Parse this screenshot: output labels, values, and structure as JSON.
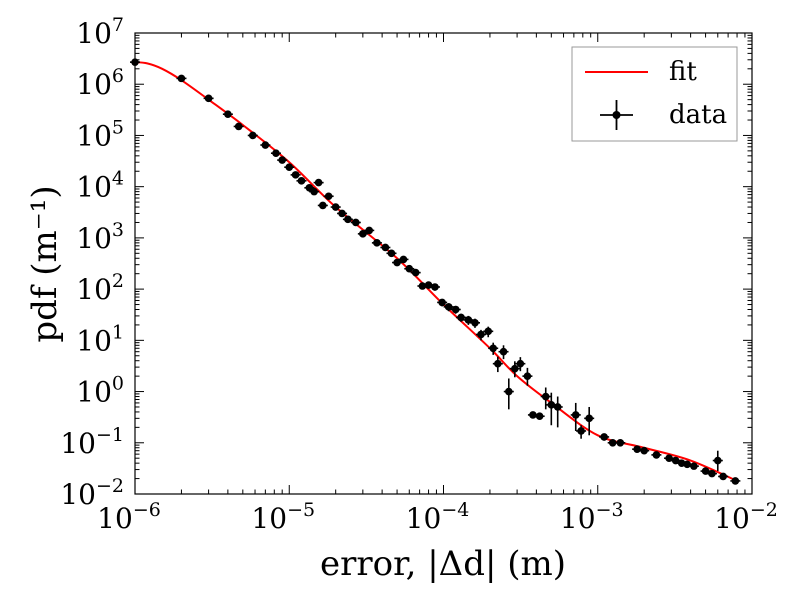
{
  "chart_data": {
    "type": "scatter",
    "title": "",
    "xlabel": "error, |Δd| (m)",
    "ylabel": "pdf (m⁻¹)",
    "xscale": "log",
    "yscale": "log",
    "xlim": [
      1e-06,
      0.01
    ],
    "ylim": [
      0.01,
      10000000
    ],
    "x_ticks": [
      {
        "value": 1e-06,
        "base": "10",
        "exp": "−6"
      },
      {
        "value": 1e-05,
        "base": "10",
        "exp": "−5"
      },
      {
        "value": 0.0001,
        "base": "10",
        "exp": "−4"
      },
      {
        "value": 0.001,
        "base": "10",
        "exp": "−3"
      },
      {
        "value": 0.01,
        "base": "10",
        "exp": "−2"
      }
    ],
    "y_ticks": [
      {
        "value": 0.01,
        "base": "10",
        "exp": "−2"
      },
      {
        "value": 0.1,
        "base": "10",
        "exp": "−1"
      },
      {
        "value": 1,
        "base": "10",
        "exp": "0"
      },
      {
        "value": 10,
        "base": "10",
        "exp": "1"
      },
      {
        "value": 100,
        "base": "10",
        "exp": "2"
      },
      {
        "value": 1000,
        "base": "10",
        "exp": "3"
      },
      {
        "value": 10000,
        "base": "10",
        "exp": "4"
      },
      {
        "value": 100000,
        "base": "10",
        "exp": "5"
      },
      {
        "value": 1000000,
        "base": "10",
        "exp": "6"
      },
      {
        "value": 10000000,
        "base": "10",
        "exp": "7"
      }
    ],
    "legend": {
      "position": "top-right",
      "entries": [
        {
          "label": "fit",
          "kind": "line",
          "color": "#ff0000"
        },
        {
          "label": "data",
          "kind": "errorbar",
          "color": "#000000"
        }
      ]
    },
    "series": [
      {
        "name": "fit",
        "kind": "line",
        "color": "#ff0000",
        "points": [
          [
            1e-06,
            2700000
          ],
          [
            1.2e-06,
            2550000
          ],
          [
            1.5e-06,
            2000000
          ],
          [
            2e-06,
            1200000
          ],
          [
            3e-06,
            500000
          ],
          [
            5e-06,
            160000
          ],
          [
            1e-05,
            30000
          ],
          [
            2e-05,
            4000
          ],
          [
            5e-05,
            400
          ],
          [
            0.0001,
            50
          ],
          [
            0.0002,
            7
          ],
          [
            0.0003,
            2
          ],
          [
            0.0005,
            0.6
          ],
          [
            0.001,
            0.14
          ],
          [
            0.002,
            0.08
          ],
          [
            0.004,
            0.045
          ],
          [
            0.008,
            0.018
          ]
        ]
      },
      {
        "name": "data",
        "kind": "errorbar",
        "color": "#000000",
        "points": [
          {
            "x": 1e-06,
            "y": 2700000,
            "ylo": 2500000,
            "yhi": 2900000
          },
          {
            "x": 2e-06,
            "y": 1300000,
            "ylo": 1200000,
            "yhi": 1400000
          },
          {
            "x": 3e-06,
            "y": 530000,
            "ylo": 490000,
            "yhi": 570000
          },
          {
            "x": 4e-06,
            "y": 260000,
            "ylo": 240000,
            "yhi": 280000
          },
          {
            "x": 4.7e-06,
            "y": 150000,
            "ylo": 138000,
            "yhi": 162000
          },
          {
            "x": 5.8e-06,
            "y": 100000,
            "ylo": 92000,
            "yhi": 108000
          },
          {
            "x": 7e-06,
            "y": 65000,
            "ylo": 60000,
            "yhi": 70000
          },
          {
            "x": 8.2e-06,
            "y": 45000,
            "ylo": 41000,
            "yhi": 49000
          },
          {
            "x": 9e-06,
            "y": 33000,
            "ylo": 30000,
            "yhi": 36000
          },
          {
            "x": 1e-05,
            "y": 24000,
            "ylo": 22000,
            "yhi": 26000
          },
          {
            "x": 1.1e-05,
            "y": 17000,
            "ylo": 15500,
            "yhi": 18500
          },
          {
            "x": 1.2e-05,
            "y": 13000,
            "ylo": 11800,
            "yhi": 14200
          },
          {
            "x": 1.35e-05,
            "y": 9500,
            "ylo": 8600,
            "yhi": 10400
          },
          {
            "x": 1.45e-05,
            "y": 8000,
            "ylo": 7200,
            "yhi": 8800
          },
          {
            "x": 1.55e-05,
            "y": 12000,
            "ylo": 10900,
            "yhi": 13100
          },
          {
            "x": 1.65e-05,
            "y": 4300,
            "ylo": 3900,
            "yhi": 4700
          },
          {
            "x": 1.8e-05,
            "y": 6500,
            "ylo": 5900,
            "yhi": 7100
          },
          {
            "x": 2e-05,
            "y": 4000,
            "ylo": 3600,
            "yhi": 4400
          },
          {
            "x": 2.2e-05,
            "y": 3000,
            "ylo": 2700,
            "yhi": 3300
          },
          {
            "x": 2.4e-05,
            "y": 2300,
            "ylo": 2050,
            "yhi": 2550
          },
          {
            "x": 2.7e-05,
            "y": 2000,
            "ylo": 1780,
            "yhi": 2220
          },
          {
            "x": 3e-05,
            "y": 1200,
            "ylo": 1060,
            "yhi": 1340
          },
          {
            "x": 3.3e-05,
            "y": 1400,
            "ylo": 1240,
            "yhi": 1560
          },
          {
            "x": 3.7e-05,
            "y": 800,
            "ylo": 700,
            "yhi": 900
          },
          {
            "x": 4.2e-05,
            "y": 650,
            "ylo": 570,
            "yhi": 730
          },
          {
            "x": 4.6e-05,
            "y": 500,
            "ylo": 440,
            "yhi": 560
          },
          {
            "x": 5e-05,
            "y": 330,
            "ylo": 290,
            "yhi": 370
          },
          {
            "x": 5.5e-05,
            "y": 380,
            "ylo": 330,
            "yhi": 430
          },
          {
            "x": 6e-05,
            "y": 250,
            "ylo": 215,
            "yhi": 285
          },
          {
            "x": 6.6e-05,
            "y": 210,
            "ylo": 180,
            "yhi": 240
          },
          {
            "x": 7.3e-05,
            "y": 115,
            "ylo": 98,
            "yhi": 132
          },
          {
            "x": 8e-05,
            "y": 120,
            "ylo": 102,
            "yhi": 138
          },
          {
            "x": 8.8e-05,
            "y": 110,
            "ylo": 93,
            "yhi": 127
          },
          {
            "x": 9.8e-05,
            "y": 55,
            "ylo": 46,
            "yhi": 64
          },
          {
            "x": 0.000108,
            "y": 45,
            "ylo": 37,
            "yhi": 53
          },
          {
            "x": 0.00012,
            "y": 40,
            "ylo": 33,
            "yhi": 47
          },
          {
            "x": 0.00013,
            "y": 28,
            "ylo": 23,
            "yhi": 33
          },
          {
            "x": 0.000145,
            "y": 25,
            "ylo": 20,
            "yhi": 30
          },
          {
            "x": 0.00016,
            "y": 22,
            "ylo": 17.5,
            "yhi": 26.5
          },
          {
            "x": 0.000175,
            "y": 13,
            "ylo": 10,
            "yhi": 16
          },
          {
            "x": 0.000195,
            "y": 15,
            "ylo": 11.5,
            "yhi": 18.5
          },
          {
            "x": 0.00021,
            "y": 7,
            "ylo": 5.2,
            "yhi": 9
          },
          {
            "x": 0.000225,
            "y": 3.5,
            "ylo": 2.4,
            "yhi": 4.8
          },
          {
            "x": 0.000245,
            "y": 6,
            "ylo": 4.3,
            "yhi": 8
          },
          {
            "x": 0.000265,
            "y": 1,
            "ylo": 0.45,
            "yhi": 1.8
          },
          {
            "x": 0.00029,
            "y": 2.8,
            "ylo": 1.9,
            "yhi": 3.9
          },
          {
            "x": 0.000315,
            "y": 3.5,
            "ylo": 2.5,
            "yhi": 4.7
          },
          {
            "x": 0.00035,
            "y": 2,
            "ylo": 1.3,
            "yhi": 2.9
          },
          {
            "x": 0.00038,
            "y": 0.35,
            "ylo": 0.31,
            "yhi": 0.39
          },
          {
            "x": 0.00042,
            "y": 0.33,
            "ylo": 0.29,
            "yhi": 0.37
          },
          {
            "x": 0.00046,
            "y": 0.8,
            "ylo": 0.45,
            "yhi": 1.2
          },
          {
            "x": 0.0005,
            "y": 0.55,
            "ylo": 0.22,
            "yhi": 0.95
          },
          {
            "x": 0.00055,
            "y": 0.5,
            "ylo": 0.2,
            "yhi": 0.8
          },
          {
            "x": 0.00072,
            "y": 0.35,
            "ylo": 0.17,
            "yhi": 0.6
          },
          {
            "x": 0.00078,
            "y": 0.17,
            "ylo": 0.12,
            "yhi": 0.22
          },
          {
            "x": 0.00088,
            "y": 0.3,
            "ylo": 0.14,
            "yhi": 0.5
          },
          {
            "x": 0.0011,
            "y": 0.13,
            "ylo": 0.11,
            "yhi": 0.15
          },
          {
            "x": 0.00125,
            "y": 0.1,
            "ylo": 0.09,
            "yhi": 0.11
          },
          {
            "x": 0.0014,
            "y": 0.1,
            "ylo": 0.09,
            "yhi": 0.11
          },
          {
            "x": 0.0018,
            "y": 0.075,
            "ylo": 0.068,
            "yhi": 0.082
          },
          {
            "x": 0.002,
            "y": 0.07,
            "ylo": 0.063,
            "yhi": 0.077
          },
          {
            "x": 0.0024,
            "y": 0.058,
            "ylo": 0.052,
            "yhi": 0.064
          },
          {
            "x": 0.0029,
            "y": 0.05,
            "ylo": 0.045,
            "yhi": 0.055
          },
          {
            "x": 0.0032,
            "y": 0.045,
            "ylo": 0.04,
            "yhi": 0.05
          },
          {
            "x": 0.0035,
            "y": 0.04,
            "ylo": 0.036,
            "yhi": 0.044
          },
          {
            "x": 0.0038,
            "y": 0.038,
            "ylo": 0.034,
            "yhi": 0.042
          },
          {
            "x": 0.0042,
            "y": 0.035,
            "ylo": 0.031,
            "yhi": 0.039
          },
          {
            "x": 0.005,
            "y": 0.028,
            "ylo": 0.025,
            "yhi": 0.031
          },
          {
            "x": 0.0055,
            "y": 0.025,
            "ylo": 0.022,
            "yhi": 0.028
          },
          {
            "x": 0.006,
            "y": 0.045,
            "ylo": 0.028,
            "yhi": 0.07
          },
          {
            "x": 0.0065,
            "y": 0.022,
            "ylo": 0.02,
            "yhi": 0.024
          },
          {
            "x": 0.0078,
            "y": 0.018,
            "ylo": 0.016,
            "yhi": 0.02
          }
        ]
      }
    ]
  }
}
